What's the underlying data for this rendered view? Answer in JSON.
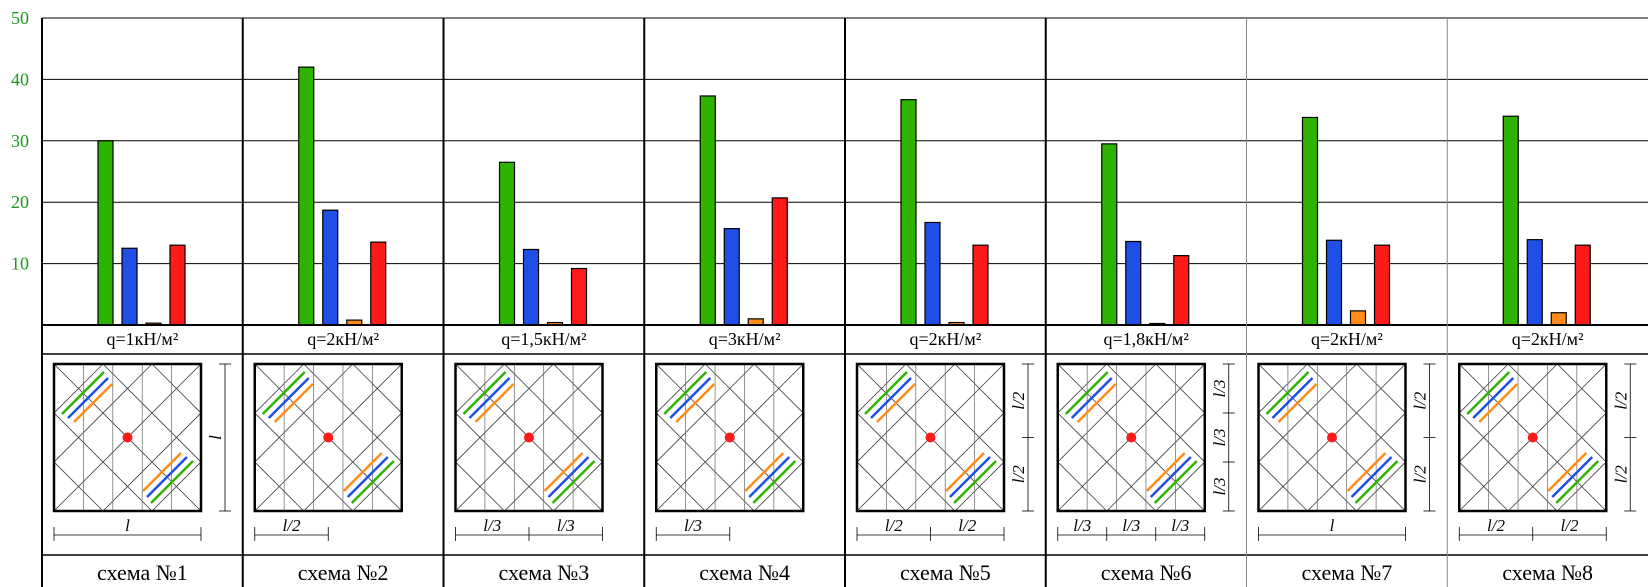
{
  "chart_data": {
    "type": "bar",
    "ylim": [
      0,
      50
    ],
    "yticks": [
      "10",
      "20",
      "30",
      "40",
      "50"
    ],
    "colors": [
      "#2db300",
      "#1f4fe6",
      "#ff8c1a",
      "#ff1a1a"
    ],
    "grid": true,
    "groups": [
      {
        "load": "q=1кН/м²",
        "scheme": "схема №1",
        "values": [
          30,
          12.5,
          0.3,
          13
        ],
        "dims_x": [
          "l"
        ],
        "dims_y": [
          "l"
        ],
        "mark_color": "#2db300"
      },
      {
        "load": "q=2кН/м²",
        "scheme": "схема №2",
        "values": [
          42,
          18.7,
          0.8,
          13.5
        ],
        "dims_x": [
          "l/2"
        ],
        "dims_y": [],
        "mark_color": "#1f4fe6"
      },
      {
        "load": "q=1,5кН/м²",
        "scheme": "схема №3",
        "values": [
          26.5,
          12.3,
          0.4,
          9.2
        ],
        "dims_x": [
          "l/3",
          "l/3"
        ],
        "dims_y": [],
        "mark_color": "#ffffff"
      },
      {
        "load": "q=3кН/м²",
        "scheme": "схема №4",
        "values": [
          37.3,
          15.7,
          1,
          20.7
        ],
        "dims_x": [
          "l/3"
        ],
        "dims_y": [],
        "mark_color": "#1f4fe6"
      },
      {
        "load": "q=2кН/м²",
        "scheme": "схема №5",
        "values": [
          36.7,
          16.7,
          0.4,
          13
        ],
        "dims_x": [
          "l/2",
          "l/2"
        ],
        "dims_y": [
          "l/2",
          "l/2"
        ],
        "mark_color": "#2db300"
      },
      {
        "load": "q=1,8кН/м²",
        "scheme": "схема №6",
        "values": [
          29.5,
          13.6,
          0.2,
          11.3
        ],
        "dims_x": [
          "l/3",
          "l/3",
          "l/3"
        ],
        "dims_y": [
          "l/3",
          "l/3",
          "l/3"
        ],
        "mark_color": "#2db300"
      },
      {
        "load": "q=2кН/м²",
        "scheme": "схема №7",
        "values": [
          33.8,
          13.8,
          2.3,
          13
        ],
        "dims_x": [
          "l"
        ],
        "dims_y": [
          "l/2",
          "l/2"
        ],
        "mark_color": "#000000"
      },
      {
        "load": "q=2кН/м²",
        "scheme": "схема №8",
        "values": [
          34,
          13.9,
          2,
          13
        ],
        "dims_x": [
          "l/2",
          "l/2"
        ],
        "dims_y": [
          "l/2",
          "l/2"
        ],
        "mark_color": "#000000"
      }
    ]
  }
}
